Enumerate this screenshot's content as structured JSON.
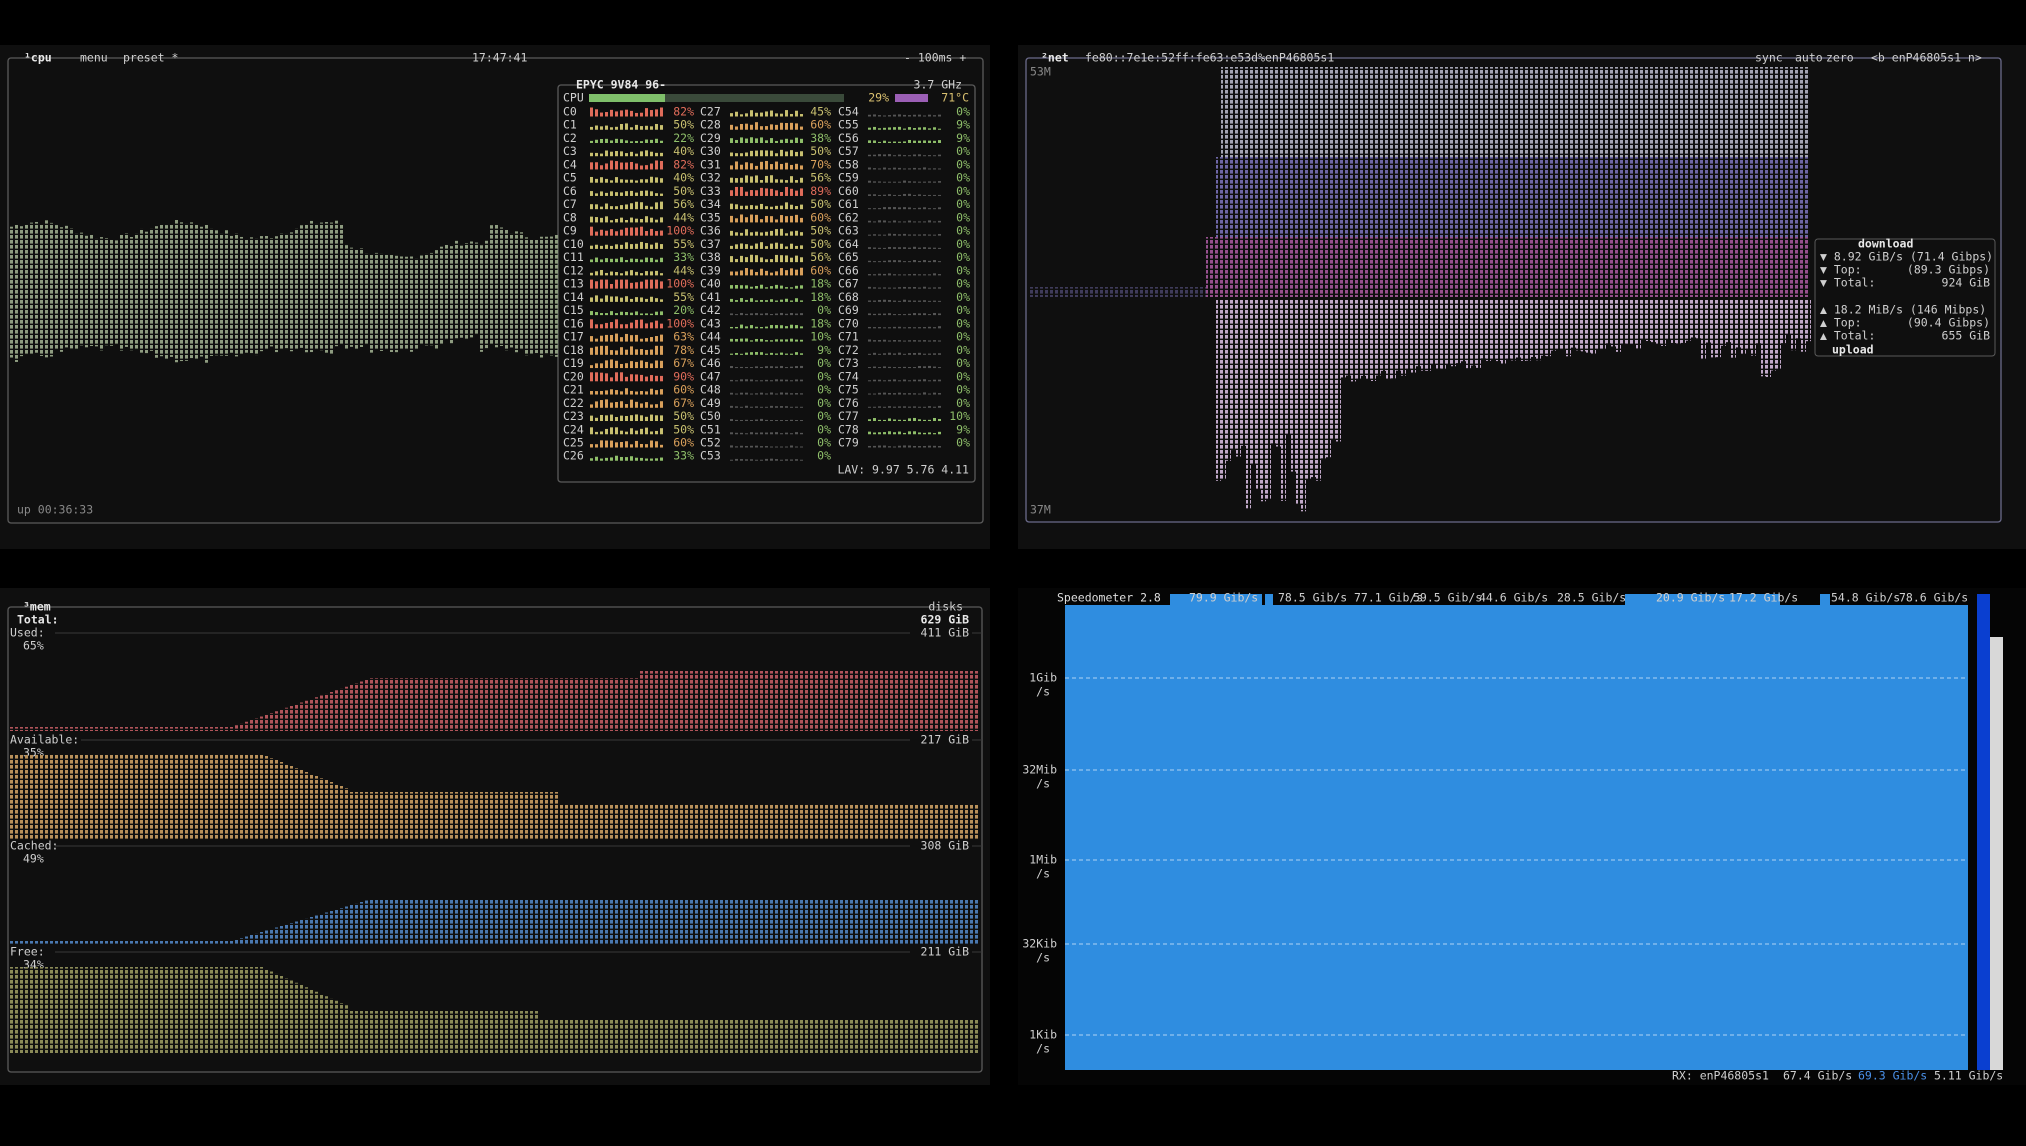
{
  "cpu": {
    "title": "¹cpu",
    "menu": "menu",
    "preset": "preset *",
    "clock": "17:47:41",
    "interval": "- 100ms +",
    "uptime": "up 00:36:33",
    "model": "EPYC 9V84 96-",
    "freq": "3.7 GHz",
    "total_label": "CPU",
    "total": "29%",
    "temp": "71°C",
    "cores": [
      [
        "C0",
        "82%"
      ],
      [
        "C1",
        "50%"
      ],
      [
        "C2",
        "22%"
      ],
      [
        "C3",
        "40%"
      ],
      [
        "C4",
        "82%"
      ],
      [
        "C5",
        "40%"
      ],
      [
        "C6",
        "50%"
      ],
      [
        "C7",
        "56%"
      ],
      [
        "C8",
        "44%"
      ],
      [
        "C9",
        "100%"
      ],
      [
        "C10",
        "55%"
      ],
      [
        "C11",
        "33%"
      ],
      [
        "C12",
        "44%"
      ],
      [
        "C13",
        "100%"
      ],
      [
        "C14",
        "55%"
      ],
      [
        "C15",
        "20%"
      ],
      [
        "C16",
        "100%"
      ],
      [
        "C17",
        "63%"
      ],
      [
        "C18",
        "78%"
      ],
      [
        "C19",
        "67%"
      ],
      [
        "C20",
        "90%"
      ],
      [
        "C21",
        "60%"
      ],
      [
        "C22",
        "67%"
      ],
      [
        "C23",
        "50%"
      ],
      [
        "C24",
        "50%"
      ],
      [
        "C25",
        "60%"
      ],
      [
        "C26",
        "33%"
      ],
      [
        "C27",
        "45%"
      ],
      [
        "C28",
        "60%"
      ],
      [
        "C29",
        "38%"
      ],
      [
        "C30",
        "50%"
      ],
      [
        "C31",
        "70%"
      ],
      [
        "C32",
        "56%"
      ],
      [
        "C33",
        "89%"
      ],
      [
        "C34",
        "50%"
      ],
      [
        "C35",
        "60%"
      ],
      [
        "C36",
        "50%"
      ],
      [
        "C37",
        "50%"
      ],
      [
        "C38",
        "56%"
      ],
      [
        "C39",
        "60%"
      ],
      [
        "C40",
        "18%"
      ],
      [
        "C41",
        "18%"
      ],
      [
        "C42",
        "0%"
      ],
      [
        "C43",
        "18%"
      ],
      [
        "C44",
        "10%"
      ],
      [
        "C45",
        "9%"
      ],
      [
        "C46",
        "0%"
      ],
      [
        "C47",
        "0%"
      ],
      [
        "C48",
        "0%"
      ],
      [
        "C49",
        "0%"
      ],
      [
        "C50",
        "0%"
      ],
      [
        "C51",
        "0%"
      ],
      [
        "C52",
        "0%"
      ],
      [
        "C53",
        "0%"
      ],
      [
        "C54",
        "0%"
      ],
      [
        "C55",
        "9%"
      ],
      [
        "C56",
        "9%"
      ],
      [
        "C57",
        "0%"
      ],
      [
        "C58",
        "0%"
      ],
      [
        "C59",
        "0%"
      ],
      [
        "C60",
        "0%"
      ],
      [
        "C61",
        "0%"
      ],
      [
        "C62",
        "0%"
      ],
      [
        "C63",
        "0%"
      ],
      [
        "C64",
        "0%"
      ],
      [
        "C65",
        "0%"
      ],
      [
        "C66",
        "0%"
      ],
      [
        "C67",
        "0%"
      ],
      [
        "C68",
        "0%"
      ],
      [
        "C69",
        "0%"
      ],
      [
        "C70",
        "0%"
      ],
      [
        "C71",
        "0%"
      ],
      [
        "C72",
        "0%"
      ],
      [
        "C73",
        "0%"
      ],
      [
        "C74",
        "0%"
      ],
      [
        "C75",
        "0%"
      ],
      [
        "C76",
        "0%"
      ],
      [
        "C77",
        "10%"
      ],
      [
        "C78",
        "9%"
      ],
      [
        "C79",
        "0%"
      ]
    ],
    "load": "LAV: 9.97 5.76 4.11"
  },
  "net": {
    "title": "²net",
    "address": "fe80::7e1e:52ff:fe63:e53d%enP46805s1",
    "sync": "sync",
    "auto": "auto",
    "zero": "zero",
    "iface": "<b enP46805s1 n>",
    "scale_top": "53M",
    "scale_bottom": "37M",
    "download": {
      "label": "download",
      "rate": "▼ 8.92 GiB/s (71.4 Gibps)",
      "top_label": "▼ Top:",
      "top": "(89.3 Gibps)",
      "total_label": "▼ Total:",
      "total": "924 GiB"
    },
    "upload": {
      "label": "upload",
      "rate": "▲ 18.2 MiB/s (146 Mibps)",
      "top_label": "▲ Top:",
      "top": "(90.4 Gibps)",
      "total_label": "▲ Total:",
      "total": "655 GiB"
    }
  },
  "mem": {
    "title": "³mem",
    "disks": "disks",
    "total_label": "Total:",
    "total": "629 GiB",
    "rows": [
      {
        "label": "Used:",
        "amount": "411 GiB",
        "percent": "65%"
      },
      {
        "label": "Available:",
        "amount": "217 GiB",
        "percent": "35%"
      },
      {
        "label": "Cached:",
        "amount": "308 GiB",
        "percent": "49%"
      },
      {
        "label": "Free:",
        "amount": "211 GiB",
        "percent": "34%"
      }
    ]
  },
  "speed": {
    "title": "Speedometer 2.8",
    "readings": [
      "79.9 Gib/s",
      "78.5 Gib/s",
      "77.1 Gib/s",
      "59.5 Gib/s",
      "44.6 Gib/s",
      "28.5 Gib/s",
      "20.9 Gib/s",
      "17.2 Gib/s",
      "54.8 Gib/s",
      "78.6 Gib/s"
    ],
    "axis": [
      [
        "1Gib",
        "/s"
      ],
      [
        "32Mib",
        "/s"
      ],
      [
        "1Mib",
        "/s"
      ],
      [
        "32Kib",
        "/s"
      ],
      [
        "1Kib",
        "/s"
      ]
    ],
    "rx_label": "RX: enP46805s1",
    "rx_current": "67.4 Gib/s",
    "rx_avg": "69.3 Gib/s",
    "rx_min": "5.11 Gib/s"
  }
}
